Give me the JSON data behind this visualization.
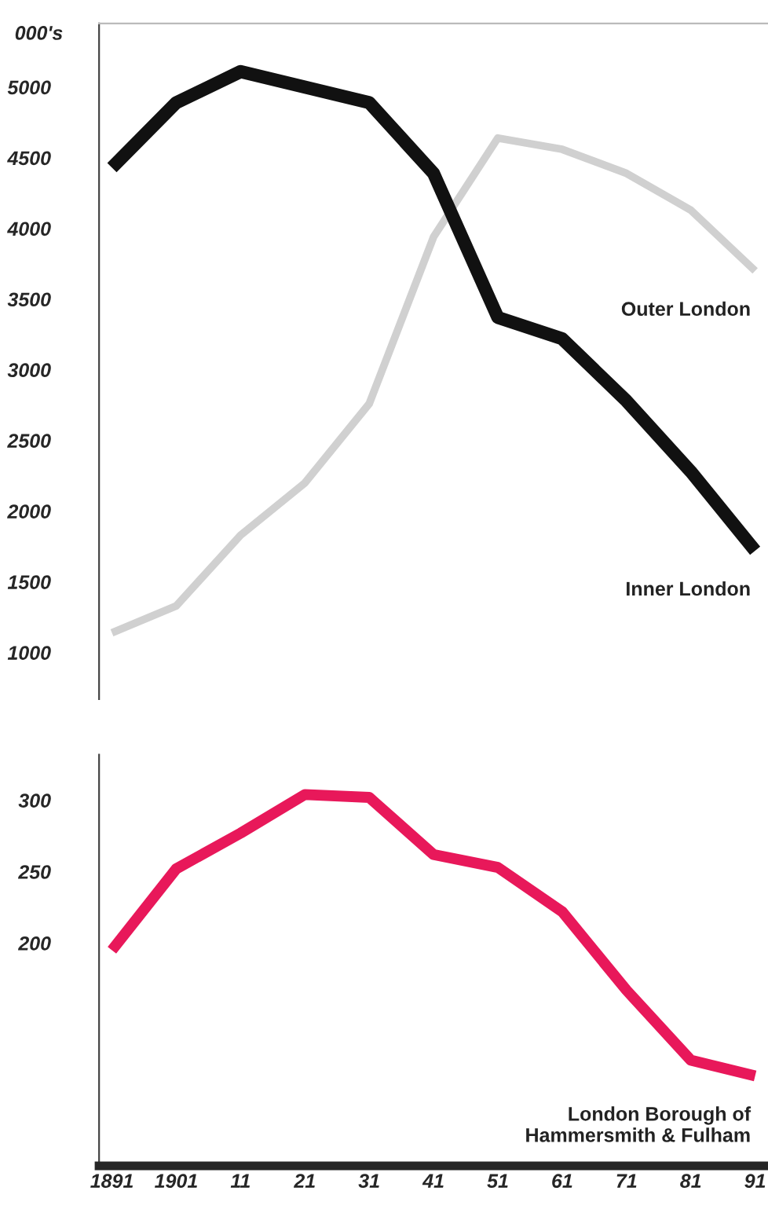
{
  "chart_data": [
    {
      "type": "line",
      "ylabel": "000's",
      "x": [
        1891,
        1901,
        1911,
        1921,
        1931,
        1941,
        1951,
        1961,
        1971,
        1981,
        1991
      ],
      "series": [
        {
          "name": "Outer London",
          "color": "#d0d0d0",
          "values": [
            1140,
            1330,
            1830,
            2200,
            2760,
            3940,
            4640,
            4560,
            4390,
            4130,
            3700
          ]
        },
        {
          "name": "Inner London",
          "color": "#111111",
          "values": [
            4430,
            4890,
            5110,
            5000,
            4890,
            4390,
            3370,
            3220,
            2780,
            2280,
            1720
          ]
        }
      ],
      "xlim": [
        1889,
        1993
      ],
      "ylim": [
        670,
        5450
      ],
      "yticks": [
        1000,
        1500,
        2000,
        2500,
        3000,
        3500,
        4000,
        4500,
        5000
      ],
      "tick_labels": "y",
      "grid": false,
      "legend": false
    },
    {
      "type": "line",
      "x": [
        1891,
        1901,
        1911,
        1921,
        1931,
        1941,
        1951,
        1961,
        1971,
        1981,
        1991
      ],
      "series": [
        {
          "name": "London Borough of\nHammersmith & Fulham",
          "color": "#e8185a",
          "values": [
            195,
            252,
            277,
            304,
            302,
            262,
            253,
            222,
            167,
            118,
            107
          ]
        }
      ],
      "xlim": [
        1889,
        1993
      ],
      "ylim": [
        44,
        332
      ],
      "yticks": [
        200,
        250,
        300
      ],
      "xticks": [
        {
          "value": 1891,
          "label": "1891"
        },
        {
          "value": 1901,
          "label": "1901"
        },
        {
          "value": 1911,
          "label": "11"
        },
        {
          "value": 1921,
          "label": "21"
        },
        {
          "value": 1931,
          "label": "31"
        },
        {
          "value": 1941,
          "label": "41"
        },
        {
          "value": 1951,
          "label": "51"
        },
        {
          "value": 1961,
          "label": "61"
        },
        {
          "value": 1971,
          "label": "71"
        },
        {
          "value": 1981,
          "label": "81"
        },
        {
          "value": 1991,
          "label": "91"
        }
      ],
      "grid": false,
      "legend": false
    }
  ]
}
